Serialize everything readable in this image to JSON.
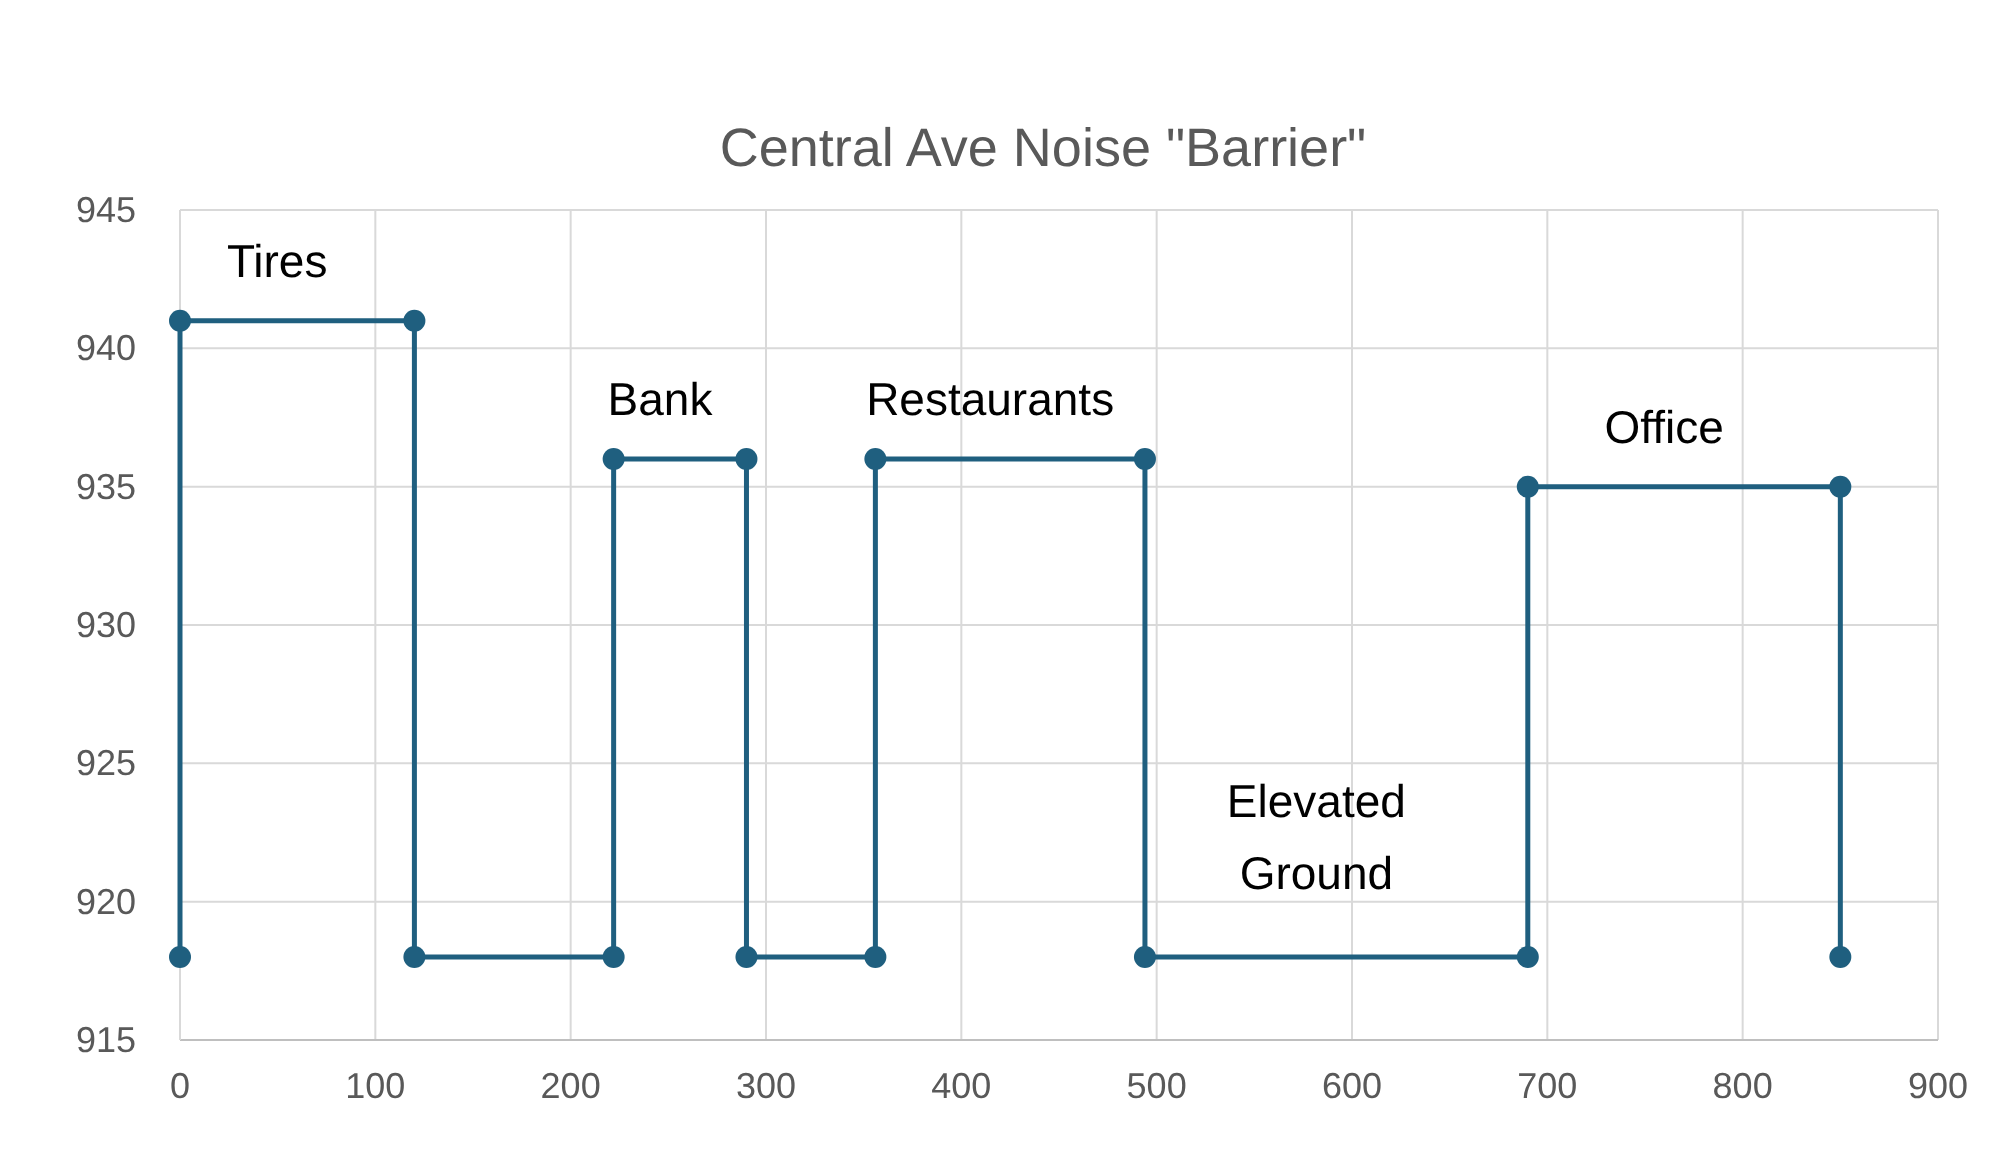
{
  "chart_data": {
    "type": "line",
    "title": "Central Ave Noise \"Barrier\"",
    "series": [
      {
        "color": "#1f5f7f",
        "x": [
          0,
          0,
          120,
          120,
          222,
          222,
          290,
          290,
          356,
          356,
          494,
          494,
          690,
          690,
          850,
          850
        ],
        "values": [
          918,
          941,
          941,
          918,
          918,
          936,
          936,
          918,
          918,
          936,
          936,
          918,
          918,
          935,
          935,
          918
        ]
      }
    ],
    "xlim": [
      0,
      900
    ],
    "xticks": [
      0,
      100,
      200,
      300,
      400,
      500,
      600,
      700,
      800,
      900
    ],
    "ylim": [
      915,
      945
    ],
    "yticks": [
      915,
      920,
      925,
      930,
      935,
      940,
      945
    ],
    "grid": true,
    "marker": "circle",
    "line_style": "solid",
    "annotations": [
      "Tires",
      "Bank",
      "Restaurants",
      "Elevated\nGround",
      "Office"
    ]
  }
}
